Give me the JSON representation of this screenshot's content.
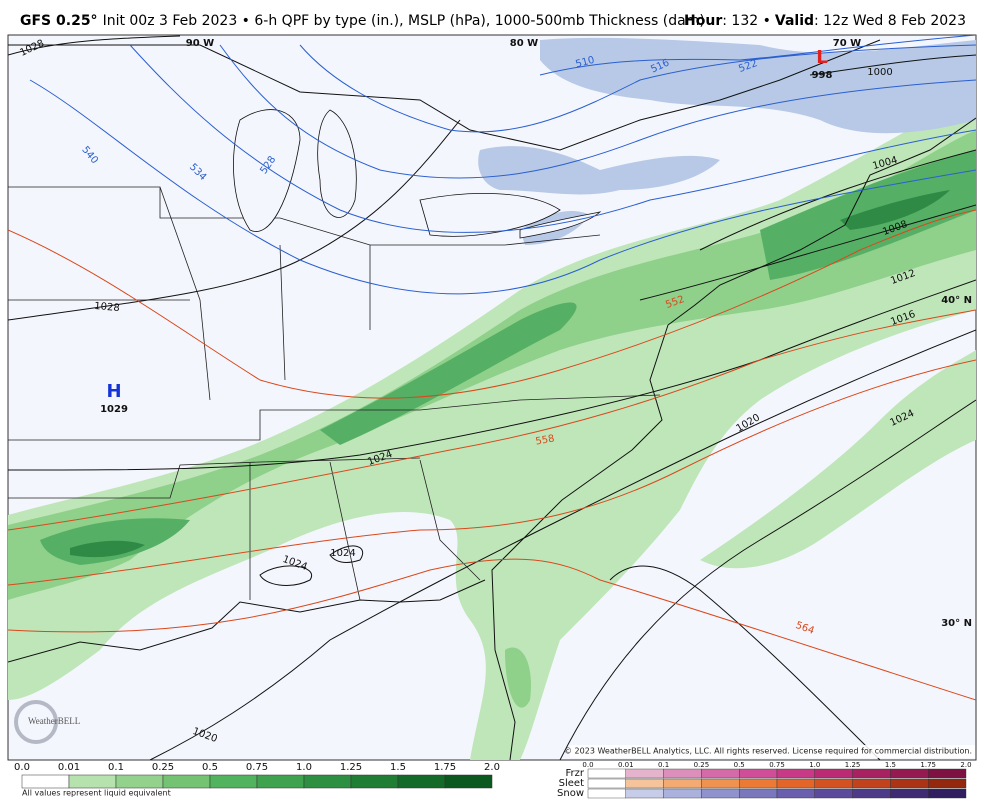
{
  "header": {
    "model": "GFS 0.25°",
    "description": "Init 00z 3 Feb 2023 • 6-h QPF by type (in.), MSLP (hPa), 1000-500mb Thickness (dam)",
    "hour_label": "Hour",
    "hour": ": 132 •",
    "valid_label": "Valid",
    "valid": ": 12z Wed 8 Feb 2023"
  },
  "map": {
    "longitudes": [
      "90 W",
      "80 W",
      "70 W"
    ],
    "latitudes": [
      "40° N",
      "30° N"
    ],
    "high": {
      "symbol": "H",
      "pressure": "1029"
    },
    "low": {
      "symbol": "L",
      "pressure": "998"
    },
    "isobar_labels": [
      "1028",
      "1028",
      "1024",
      "1024",
      "1024",
      "1020",
      "1020",
      "1024",
      "1016",
      "1012",
      "1008",
      "1004",
      "1000"
    ],
    "thickness_labels": [
      "510",
      "516",
      "522",
      "528",
      "534",
      "540",
      "552",
      "558",
      "564"
    ],
    "copyright": "© 2023 WeatherBELL Analytics, LLC. All rights reserved. License required for commercial distribution.",
    "logo": "WeatherBELL"
  },
  "legend": {
    "rain_values": [
      "0.0",
      "0.01",
      "0.1",
      "0.25",
      "0.5",
      "0.75",
      "1.0",
      "1.25",
      "1.5",
      "1.75",
      "2.0"
    ],
    "note": "All values represent liquid equivalent",
    "types": [
      "Frzr",
      "Sleet",
      "Snow"
    ],
    "type_values": [
      "0.0",
      "0.01",
      "0.1",
      "0.25",
      "0.5",
      "0.75",
      "1.0",
      "1.25",
      "1.5",
      "1.75",
      "2.0"
    ]
  }
}
